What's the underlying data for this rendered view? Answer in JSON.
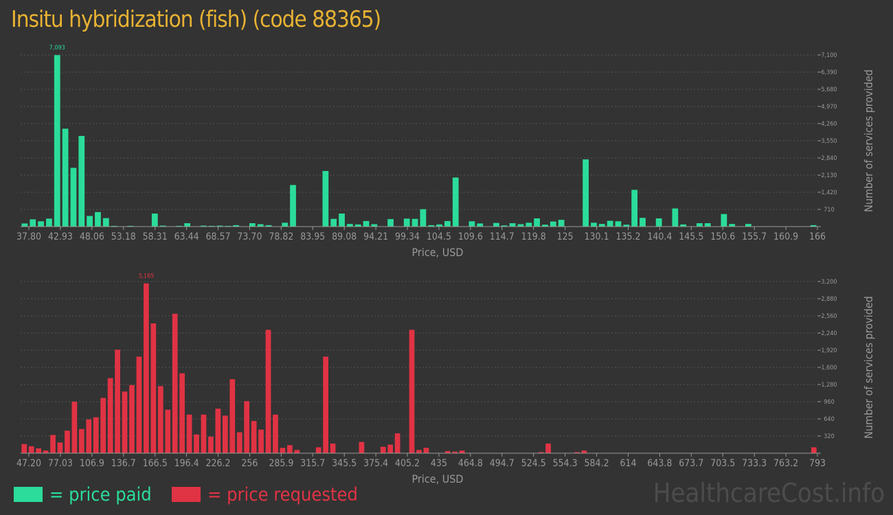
{
  "title": "Insitu hybridization (fish) (code 88365)",
  "colors": {
    "paid": "#2bdc9a",
    "requested": "#e03344",
    "title": "#e8b233",
    "axis": "#999999",
    "grid": "#555555"
  },
  "legend": {
    "paid": "= price paid",
    "requested": "= price requested"
  },
  "watermark": "HealthcareCost.info",
  "chart_data": [
    {
      "type": "bar",
      "id": "paid",
      "xlabel": "Price, USD",
      "ylabel": "Number of services provided",
      "ylim": [
        0,
        7100
      ],
      "yticks": [
        710,
        1420,
        2130,
        2840,
        3550,
        4260,
        4970,
        5680,
        6390,
        7100
      ],
      "ytick_labels": [
        "710",
        "1,420",
        "2,130",
        "2,840",
        "3,550",
        "4,260",
        "4,970",
        "5,680",
        "6,390",
        "7,100"
      ],
      "xtick_labels": [
        "37.80",
        "42.93",
        "48.06",
        "53.18",
        "58.31",
        "63.44",
        "68.57",
        "73.70",
        "78.82",
        "83.95",
        "89.08",
        "94.21",
        "99.34",
        "104.5",
        "109.6",
        "114.7",
        "119.8",
        "125",
        "130.1",
        "135.2",
        "140.4",
        "145.5",
        "150.6",
        "155.7",
        "160.9",
        "166"
      ],
      "peak_label": "7,093",
      "values": [
        130,
        300,
        220,
        330,
        7093,
        4050,
        2430,
        3750,
        440,
        600,
        350,
        30,
        0,
        30,
        0,
        0,
        540,
        40,
        0,
        30,
        140,
        0,
        40,
        30,
        40,
        30,
        60,
        0,
        140,
        100,
        60,
        0,
        160,
        1720,
        0,
        0,
        0,
        2300,
        320,
        540,
        110,
        90,
        230,
        100,
        0,
        310,
        0,
        330,
        320,
        720,
        60,
        90,
        230,
        2030,
        0,
        220,
        130,
        0,
        150,
        50,
        140,
        100,
        160,
        340,
        80,
        210,
        280,
        0,
        0,
        2780,
        160,
        110,
        240,
        220,
        80,
        1520,
        360,
        0,
        340,
        0,
        750,
        90,
        0,
        140,
        140,
        0,
        520,
        110,
        0,
        110,
        0,
        0,
        0,
        0,
        0,
        0,
        0,
        60
      ]
    },
    {
      "type": "bar",
      "id": "requested",
      "xlabel": "Price, USD",
      "ylabel": "Number of services provided",
      "ylim": [
        0,
        3200
      ],
      "yticks": [
        320,
        640,
        960,
        1280,
        1600,
        1920,
        2240,
        2560,
        2880,
        3200
      ],
      "ytick_labels": [
        "320",
        "640",
        "960",
        "1,280",
        "1,600",
        "1,920",
        "2,240",
        "2,560",
        "2,880",
        "3,200"
      ],
      "xtick_labels": [
        "47.20",
        "77.03",
        "106.9",
        "136.7",
        "166.5",
        "196.4",
        "226.2",
        "256",
        "285.9",
        "315.7",
        "345.5",
        "375.4",
        "405.2",
        "435",
        "464.8",
        "494.7",
        "524.5",
        "554.3",
        "584.2",
        "614",
        "643.8",
        "673.7",
        "703.5",
        "733.3",
        "763.2",
        "793"
      ],
      "peak_label": "3,165",
      "values": [
        170,
        130,
        90,
        50,
        340,
        200,
        420,
        960,
        450,
        630,
        670,
        1030,
        1400,
        1930,
        1150,
        1270,
        1800,
        3165,
        2420,
        1250,
        810,
        2600,
        1490,
        720,
        350,
        720,
        310,
        830,
        700,
        1380,
        390,
        970,
        600,
        440,
        2300,
        720,
        100,
        150,
        60,
        0,
        0,
        110,
        1800,
        180,
        0,
        0,
        0,
        210,
        0,
        0,
        120,
        160,
        370,
        0,
        2300,
        60,
        100,
        0,
        0,
        40,
        30,
        50,
        0,
        0,
        0,
        0,
        0,
        0,
        0,
        0,
        0,
        0,
        20,
        180,
        0,
        0,
        0,
        20,
        50,
        0,
        0,
        0,
        0,
        0,
        0,
        0,
        0,
        0,
        0,
        0,
        0,
        0,
        0,
        0,
        0,
        0,
        0,
        0,
        0,
        0,
        0,
        0,
        0,
        0,
        0,
        0,
        0,
        0,
        0,
        0,
        110
      ]
    }
  ]
}
